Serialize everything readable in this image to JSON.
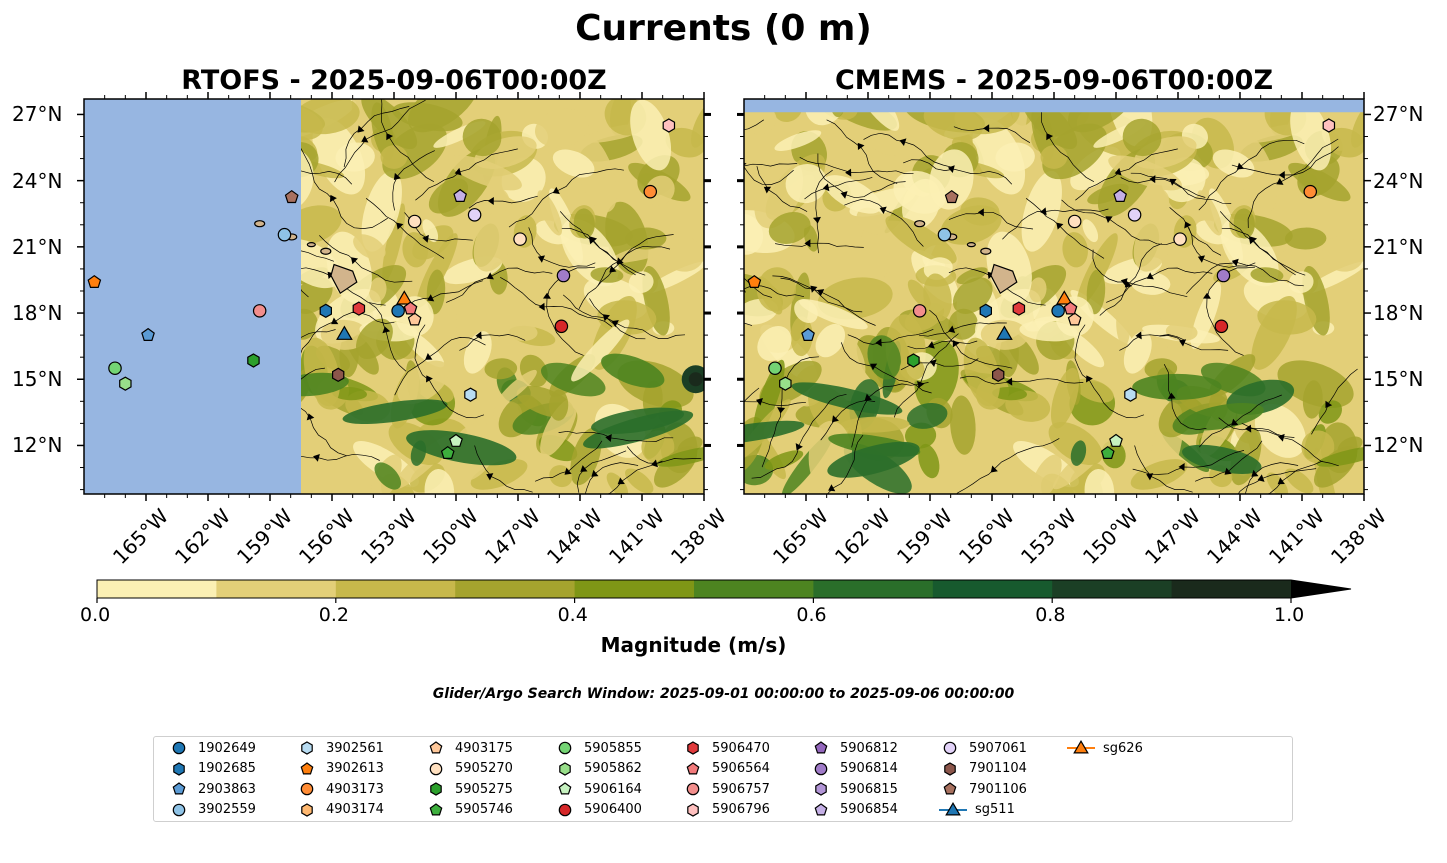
{
  "title": "Currents (0 m)",
  "panels": [
    {
      "id": "rtofs",
      "title": "RTOFS - 2025-09-06T00:00Z",
      "land_mask_east_lon": -157.5
    },
    {
      "id": "cmems",
      "title": "CMEMS - 2025-09-06T00:00Z",
      "land_mask_east_lon": null
    }
  ],
  "map": {
    "lon_range": [
      -168,
      -138
    ],
    "lat_range": [
      9.8,
      27.7
    ],
    "lat_ticks": [
      "12°N",
      "15°N",
      "18°N",
      "21°N",
      "24°N",
      "27°N"
    ],
    "lat_tick_values": [
      12,
      15,
      18,
      21,
      24,
      27
    ],
    "lon_ticks": [
      "165°W",
      "162°W",
      "159°W",
      "156°W",
      "153°W",
      "150°W",
      "147°W",
      "144°W",
      "141°W",
      "138°W"
    ],
    "lon_tick_values": [
      -165,
      -162,
      -159,
      -156,
      -153,
      -150,
      -147,
      -144,
      -141,
      -138
    ],
    "ocean_color": "#97b6e1"
  },
  "colorbar": {
    "label": "Magnitude (m/s)",
    "ticks": [
      "0.0",
      "0.2",
      "0.4",
      "0.6",
      "0.8",
      "1.0"
    ],
    "tick_values": [
      0,
      0.2,
      0.4,
      0.6,
      0.8,
      1.0
    ],
    "levels": [
      0,
      0.1,
      0.2,
      0.3,
      0.4,
      0.5,
      0.6,
      0.7,
      0.8,
      0.9,
      1.0
    ],
    "colors": [
      "#fbf0b4",
      "#e3cf78",
      "#c7b84b",
      "#a5a32e",
      "#7f9616",
      "#4d8420",
      "#2a6e2a",
      "#175a2e",
      "#1b3f25",
      "#1a2a1c"
    ],
    "extend": "max"
  },
  "search_window": "Glider/Argo Search Window: 2025-09-01 00:00:00 to 2025-09-06 00:00:00",
  "legend": [
    {
      "label": "1902649",
      "color": "#1f77b4",
      "marker": "circle"
    },
    {
      "label": "1902685",
      "color": "#1f77b4",
      "marker": "hexagon"
    },
    {
      "label": "2903863",
      "color": "#5b9bd5",
      "marker": "pentagon"
    },
    {
      "label": "3902559",
      "color": "#8fc3e6",
      "marker": "circle"
    },
    {
      "label": "3902561",
      "color": "#b8dcf2",
      "marker": "hexagon"
    },
    {
      "label": "3902613",
      "color": "#ff7f0e",
      "marker": "pentagon"
    },
    {
      "label": "4903173",
      "color": "#ff8c35",
      "marker": "circle"
    },
    {
      "label": "4903174",
      "color": "#ffb870",
      "marker": "hexagon"
    },
    {
      "label": "4903175",
      "color": "#ffc89a",
      "marker": "pentagon"
    },
    {
      "label": "5905270",
      "color": "#ffe0c0",
      "marker": "circle"
    },
    {
      "label": "5905275",
      "color": "#2ca02c",
      "marker": "hexagon"
    },
    {
      "label": "5905746",
      "color": "#3daf3d",
      "marker": "pentagon"
    },
    {
      "label": "5905855",
      "color": "#74d474",
      "marker": "circle"
    },
    {
      "label": "5905862",
      "color": "#98df8a",
      "marker": "hexagon"
    },
    {
      "label": "5906164",
      "color": "#c6f2c0",
      "marker": "pentagon"
    },
    {
      "label": "5906400",
      "color": "#d62728",
      "marker": "circle"
    },
    {
      "label": "5906470",
      "color": "#e03a3c",
      "marker": "hexagon"
    },
    {
      "label": "5906564",
      "color": "#f27a7b",
      "marker": "pentagon"
    },
    {
      "label": "5906757",
      "color": "#f28e8c",
      "marker": "circle"
    },
    {
      "label": "5906796",
      "color": "#ffc0bf",
      "marker": "hexagon"
    },
    {
      "label": "5906812",
      "color": "#9467bd",
      "marker": "pentagon"
    },
    {
      "label": "5906814",
      "color": "#a07bc8",
      "marker": "circle"
    },
    {
      "label": "5906815",
      "color": "#b295d6",
      "marker": "hexagon"
    },
    {
      "label": "5906854",
      "color": "#c5b0e6",
      "marker": "pentagon"
    },
    {
      "label": "5907061",
      "color": "#e2d2f8",
      "marker": "circle"
    },
    {
      "label": "7901104",
      "color": "#8c564b",
      "marker": "hexagon"
    },
    {
      "label": "7901106",
      "color": "#a8715f",
      "marker": "pentagon"
    },
    {
      "label": "sg511",
      "color": "#1f77b4",
      "marker": "triangle"
    },
    {
      "label": "sg626",
      "color": "#ff7f0e",
      "marker": "triangle"
    }
  ],
  "platforms": [
    {
      "label": "3902613",
      "lon": -167.5,
      "lat": 19.4
    },
    {
      "label": "2903863",
      "lon": -164.9,
      "lat": 17.0
    },
    {
      "label": "5905855",
      "lon": -166.5,
      "lat": 15.5
    },
    {
      "label": "5905862",
      "lon": -166.0,
      "lat": 14.8
    },
    {
      "label": "5906757",
      "lon": -159.5,
      "lat": 18.1
    },
    {
      "label": "5905275",
      "lon": -159.8,
      "lat": 15.85
    },
    {
      "label": "3902559",
      "lon": -158.3,
      "lat": 21.55
    },
    {
      "label": "7901106",
      "lon": -157.95,
      "lat": 23.25
    },
    {
      "label": "1902685",
      "lon": -156.3,
      "lat": 18.1
    },
    {
      "label": "7901104",
      "lon": -155.7,
      "lat": 15.2
    },
    {
      "label": "sg511",
      "lon": -155.4,
      "lat": 17.0
    },
    {
      "label": "5906470",
      "lon": -154.7,
      "lat": 18.2
    },
    {
      "label": "1902649",
      "lon": -152.8,
      "lat": 18.1
    },
    {
      "label": "sg626",
      "lon": -152.5,
      "lat": 18.6
    },
    {
      "label": "4903175",
      "lon": -152.0,
      "lat": 17.7
    },
    {
      "label": "5906564",
      "lon": -152.2,
      "lat": 18.2
    },
    {
      "label": "5905270",
      "lon": -152.0,
      "lat": 22.15
    },
    {
      "label": "5906854",
      "lon": -149.8,
      "lat": 23.3
    },
    {
      "label": "5907061",
      "lon": -149.1,
      "lat": 22.45
    },
    {
      "label": "3902561",
      "lon": -149.3,
      "lat": 14.3
    },
    {
      "label": "5906164",
      "lon": -150.0,
      "lat": 12.2
    },
    {
      "label": "5905746",
      "lon": -150.4,
      "lat": 11.65
    },
    {
      "label": "5905270",
      "lon": -146.9,
      "lat": 21.35
    },
    {
      "label": "5906814",
      "lon": -144.8,
      "lat": 19.7
    },
    {
      "label": "5906400",
      "lon": -144.9,
      "lat": 17.4
    },
    {
      "label": "4903173",
      "lon": -140.6,
      "lat": 23.5
    },
    {
      "label": "5906796",
      "lon": -139.7,
      "lat": 26.5
    }
  ]
}
